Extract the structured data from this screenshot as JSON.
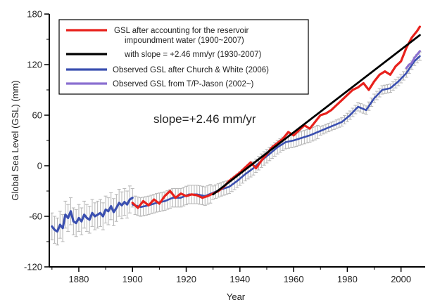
{
  "chart_data": {
    "type": "line",
    "xlabel": "Year",
    "ylabel": "Global Sea Level (GSL)  (mm)",
    "xlim": [
      1869,
      2009
    ],
    "ylim": [
      -120,
      180
    ],
    "x_ticks": [
      1880,
      1900,
      1920,
      1940,
      1960,
      1980,
      2000
    ],
    "y_ticks": [
      -120,
      -60,
      0,
      60,
      120,
      180
    ],
    "grid": false,
    "legend_position": "top-left",
    "annotation": "slope=+2.46 mm/yr",
    "legend": [
      {
        "series": "reservoir",
        "lines": [
          "GSL after accounting for the reservoir",
          "impoundment water (1900~2007)"
        ]
      },
      {
        "series": "trend",
        "lines": [
          "with slope = +2.46 mm/yr (1930-2007)"
        ]
      },
      {
        "series": "church_white",
        "lines": [
          "Observed GSL after Church & White (2006)"
        ]
      },
      {
        "series": "tp_jason",
        "lines": [
          "Observed GSL from T/P-Jason (2002~)"
        ]
      }
    ],
    "colors": {
      "reservoir": "#e8211c",
      "trend": "#000000",
      "church_white": "#3a4fb0",
      "tp_jason": "#8a6fd0",
      "error_bars": "#b4b4b4"
    },
    "series": [
      {
        "key": "church_white_1870_1900",
        "x": [
          1870,
          1871,
          1872,
          1873,
          1874,
          1875,
          1876,
          1877,
          1878,
          1879,
          1880,
          1881,
          1882,
          1883,
          1884,
          1885,
          1886,
          1887,
          1888,
          1889,
          1890,
          1891,
          1892,
          1893,
          1894,
          1895,
          1896,
          1897,
          1898,
          1899,
          1900
        ],
        "y": [
          -72,
          -76,
          -78,
          -70,
          -74,
          -58,
          -62,
          -54,
          -66,
          -68,
          -62,
          -66,
          -58,
          -62,
          -64,
          -56,
          -60,
          -58,
          -56,
          -60,
          -52,
          -54,
          -48,
          -55,
          -50,
          -44,
          -47,
          -43,
          -46,
          -40,
          -38
        ]
      },
      {
        "key": "church_white_1900_2007",
        "x": [
          1900,
          1903,
          1906,
          1909,
          1912,
          1915,
          1918,
          1921,
          1924,
          1927,
          1930,
          1933,
          1936,
          1939,
          1942,
          1945,
          1948,
          1951,
          1954,
          1957,
          1960,
          1963,
          1966,
          1969,
          1972,
          1975,
          1978,
          1981,
          1984,
          1987,
          1990,
          1993,
          1996,
          1999,
          2002,
          2005,
          2007
        ],
        "y": [
          -46,
          -49,
          -47,
          -44,
          -42,
          -38,
          -38,
          -34,
          -34,
          -36,
          -32,
          -28,
          -25,
          -18,
          -10,
          -3,
          6,
          14,
          22,
          28,
          30,
          33,
          36,
          40,
          44,
          48,
          52,
          60,
          70,
          66,
          80,
          90,
          92,
          100,
          110,
          124,
          130
        ]
      },
      {
        "key": "reservoir",
        "x": [
          1900,
          1902,
          1904,
          1906,
          1908,
          1910,
          1912,
          1914,
          1916,
          1918,
          1920,
          1922,
          1924,
          1926,
          1928,
          1930,
          1932,
          1934,
          1936,
          1938,
          1940,
          1942,
          1944,
          1946,
          1948,
          1950,
          1952,
          1954,
          1956,
          1958,
          1960,
          1962,
          1964,
          1966,
          1968,
          1970,
          1972,
          1974,
          1976,
          1978,
          1980,
          1982,
          1984,
          1986,
          1988,
          1990,
          1992,
          1994,
          1996,
          1998,
          2000,
          2002,
          2004,
          2006,
          2007
        ],
        "y": [
          -44,
          -50,
          -42,
          -47,
          -40,
          -45,
          -36,
          -30,
          -38,
          -33,
          -36,
          -34,
          -35,
          -38,
          -36,
          -33,
          -30,
          -25,
          -18,
          -13,
          -8,
          -2,
          4,
          -3,
          6,
          14,
          22,
          27,
          32,
          40,
          36,
          42,
          48,
          44,
          52,
          60,
          62,
          66,
          72,
          78,
          84,
          90,
          93,
          98,
          90,
          100,
          108,
          112,
          108,
          118,
          124,
          140,
          152,
          160,
          165
        ]
      },
      {
        "key": "trend",
        "x": [
          1930,
          2007
        ],
        "y": [
          -34,
          155
        ]
      },
      {
        "key": "tp_jason",
        "x": [
          2002,
          2003,
          2004,
          2005,
          2006,
          2007
        ],
        "y": [
          116,
          120,
          122,
          128,
          132,
          136
        ]
      }
    ]
  }
}
